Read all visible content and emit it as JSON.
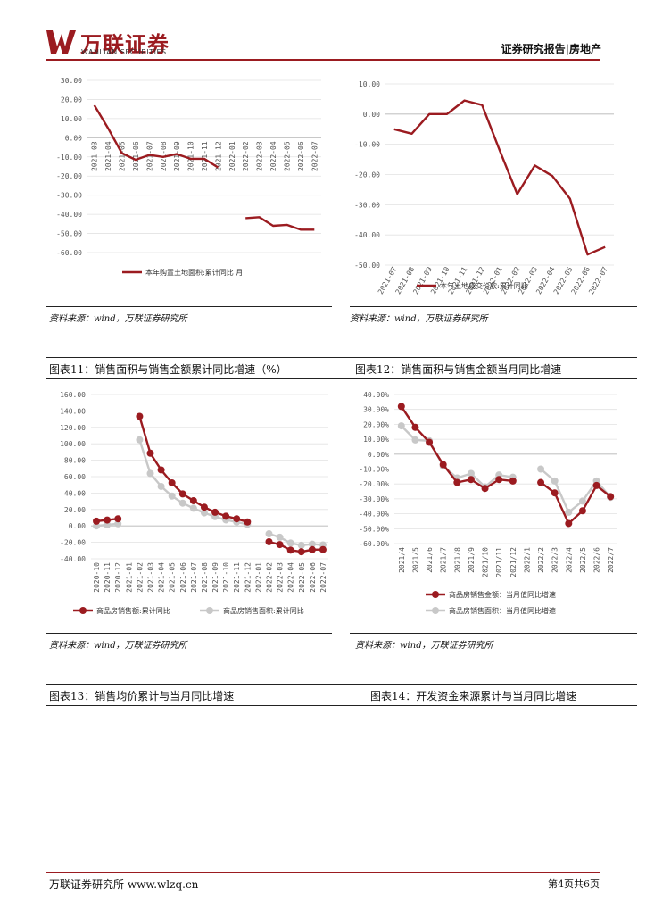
{
  "header": {
    "logo_cn": "万联证券",
    "logo_en": "WANLIAN SECURITIES",
    "report_type": "证券研究报告|房地产"
  },
  "colors": {
    "brand": "#9b1b20",
    "series_red": "#9b1b20",
    "series_gray": "#c8c8c8"
  },
  "sources": {
    "left_top": "资料来源：wind，万联证券研究所",
    "right_top": "资料来源：wind，万联证券研究所",
    "left_mid": "资料来源：wind，万联证券研究所",
    "right_mid": "资料来源：wind，万联证券研究所"
  },
  "captions": {
    "fig11": "图表11：销售面积与销售金额累计同比增速（%）",
    "fig12": "图表12：销售面积与销售金额当月同比增速",
    "fig13": "图表13：销售均价累计与当月同比增速",
    "fig14": "图表14：开发资金来源累计与当月同比增速"
  },
  "footer": {
    "left": "万联证券研究所 www.wlzq.cn",
    "right": "第4页共6页"
  },
  "chart_data": [
    {
      "id": "land_purchase",
      "type": "line",
      "categories": [
        "2021-03",
        "2021-04",
        "2021-05",
        "2021-06",
        "2021-07",
        "2021-08",
        "2021-09",
        "2021-10",
        "2021-11",
        "2021-12",
        "2022-01",
        "2022-02",
        "2022-03",
        "2022-04",
        "2022-05",
        "2022-06",
        "2022-07"
      ],
      "tick_labels": [
        "2021-03",
        "2021-04",
        "2021-05",
        "2021-06",
        "2021-07",
        "2021-08",
        "2021-09",
        "2021-10",
        "2021-11",
        "2021-12",
        "2022-01",
        "2022-02",
        "2022-03",
        "2022-04",
        "2022-05",
        "2022-06",
        "2022-07"
      ],
      "series": [
        {
          "name": "本年购置土地面积:累计同比 月",
          "values": [
            17.0,
            5.0,
            -8.0,
            -11.5,
            -9.0,
            -10.0,
            -8.5,
            -11.0,
            -11.0,
            -15.5,
            null,
            -42.0,
            -41.5,
            -46.0,
            -45.5,
            -48.0,
            -48.0
          ]
        }
      ],
      "yticks": [
        "30.00",
        "20.00",
        "10.00",
        "0.00",
        "-10.00",
        "-20.00",
        "-30.00",
        "-40.00",
        "-50.00",
        "-60.00"
      ],
      "ylim": [
        -60,
        30
      ],
      "markers": false
    },
    {
      "id": "land_deal_price",
      "type": "line",
      "categories": [
        "2021-07",
        "2021-08",
        "2021-09",
        "2021-10",
        "2021-11",
        "2021-12",
        "2022-01",
        "2022-02",
        "2022-03",
        "2022-04",
        "2022-05",
        "2022-06",
        "2022-07"
      ],
      "tick_labels": [
        "2021-07",
        "2021-08",
        "2021-09",
        "2021-10",
        "2021-11",
        "2021-12",
        "2022-01",
        "2022-02",
        "2022-03",
        "2022-04",
        "2022-05",
        "2022-06",
        "2022-07"
      ],
      "series": [
        {
          "name": "本年土地成交价款:累计同比",
          "values": [
            -5.0,
            -6.5,
            0.0,
            0.0,
            4.5,
            3.0,
            -12.0,
            -26.5,
            -17.0,
            -20.5,
            -28.0,
            -46.5,
            -44.0
          ]
        }
      ],
      "yticks": [
        "10.00",
        "0.00",
        "-10.00",
        "-20.00",
        "-30.00",
        "-40.00",
        "-50.00"
      ],
      "ylim": [
        -50,
        10
      ],
      "markers": false
    },
    {
      "id": "sales_cumulative",
      "type": "line",
      "categories": [
        "2020-10",
        "2020-11",
        "2020-12",
        "2021-01",
        "2021-02",
        "2021-03",
        "2021-04",
        "2021-05",
        "2021-06",
        "2021-07",
        "2021-08",
        "2021-09",
        "2021-10",
        "2021-11",
        "2021-12",
        "2022-01",
        "2022-02",
        "2022-03",
        "2022-04",
        "2022-05",
        "2022-06",
        "2022-07"
      ],
      "tick_labels": [
        "2020-10",
        "2020-11",
        "2020-12",
        "2021-01",
        "2021-02",
        "2021-03",
        "2021-04",
        "2021-05",
        "2021-06",
        "2021-07",
        "2021-08",
        "2021-09",
        "2021-10",
        "2021-11",
        "2021-12",
        "2022-01",
        "2022-02",
        "2022-03",
        "2022-04",
        "2022-05",
        "2022-06",
        "2022-07"
      ],
      "series": [
        {
          "name": "商品房销售额:累计同比",
          "values": [
            5.8,
            7.2,
            8.7,
            null,
            133.4,
            88.5,
            68.2,
            52.4,
            38.9,
            30.7,
            22.8,
            16.6,
            11.8,
            8.7,
            4.8,
            null,
            -19.3,
            -22.7,
            -29.5,
            -31.5,
            -28.9,
            -28.8
          ]
        },
        {
          "name": "商品房销售面积:累计同比",
          "values": [
            0.0,
            1.3,
            2.6,
            null,
            104.9,
            63.8,
            48.1,
            36.3,
            27.7,
            21.5,
            15.9,
            11.3,
            7.3,
            4.8,
            1.9,
            null,
            -9.6,
            -13.8,
            -20.9,
            -23.6,
            -22.2,
            -23.1
          ]
        }
      ],
      "yticks": [
        "160.00",
        "140.00",
        "120.00",
        "100.00",
        "80.00",
        "60.00",
        "40.00",
        "20.00",
        "0.00",
        "-20.00",
        "-40.00"
      ],
      "ylim": [
        -40,
        160
      ],
      "markers": true
    },
    {
      "id": "sales_monthly",
      "type": "line",
      "categories": [
        "2021/4",
        "2021/5",
        "2021/6",
        "2021/7",
        "2021/8",
        "2021/9",
        "2021/10",
        "2021/11",
        "2021/12",
        "2022/1",
        "2022/2",
        "2022/3",
        "2022/4",
        "2022/5",
        "2022/6",
        "2022/7"
      ],
      "tick_labels": [
        "2021/4",
        "2021/5",
        "2021/6",
        "2021/7",
        "2021/8",
        "2021/9",
        "2021/10",
        "2021/11",
        "2021/12",
        "2022/1",
        "2022/2",
        "2022/3",
        "2022/4",
        "2022/5",
        "2022/6",
        "2022/7"
      ],
      "series": [
        {
          "name": "商品房销售金额：当月值同比增速",
          "values": [
            32.0,
            18.0,
            8.0,
            -7.0,
            -19.0,
            -17.0,
            -23.0,
            -17.0,
            -18.0,
            null,
            -19.0,
            -26.0,
            -46.5,
            -38.0,
            -21.0,
            -28.5
          ]
        },
        {
          "name": "商品房销售面积：当月值同比增速",
          "values": [
            19.0,
            9.5,
            9.0,
            -8.0,
            -16.0,
            -13.0,
            -22.0,
            -14.0,
            -15.5,
            null,
            -10.0,
            -18.0,
            -39.0,
            -31.5,
            -18.0,
            -29.0
          ]
        }
      ],
      "yticks": [
        "40.00%",
        "30.00%",
        "20.00%",
        "10.00%",
        "0.00%",
        "-10.00%",
        "-20.00%",
        "-30.00%",
        "-40.00%",
        "-50.00%",
        "-60.00%"
      ],
      "ylim": [
        -60,
        40
      ],
      "markers": true
    }
  ]
}
